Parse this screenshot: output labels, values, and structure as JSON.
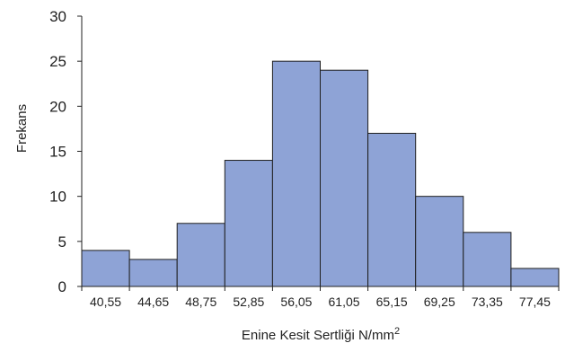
{
  "chart_data": {
    "type": "bar",
    "title": "",
    "xlabel": "Enine Kesit Sertliği N/mm",
    "xlabel_superscript": "2",
    "ylabel": "Frekans",
    "categories": [
      "40,55",
      "44,65",
      "48,75",
      "52,85",
      "56,05",
      "61,05",
      "65,15",
      "69,25",
      "73,35",
      "77,45"
    ],
    "values": [
      4,
      3,
      7,
      14,
      25,
      24,
      17,
      10,
      6,
      2
    ],
    "ylim": [
      0,
      30
    ],
    "yticks": [
      "0",
      "5",
      "10",
      "15",
      "20",
      "25",
      "30"
    ],
    "grid": false,
    "legend": "none",
    "colors": {
      "bar_fill": "#8ea3d6",
      "bar_stroke": "#1f1f1f",
      "axis": "#222222"
    }
  }
}
